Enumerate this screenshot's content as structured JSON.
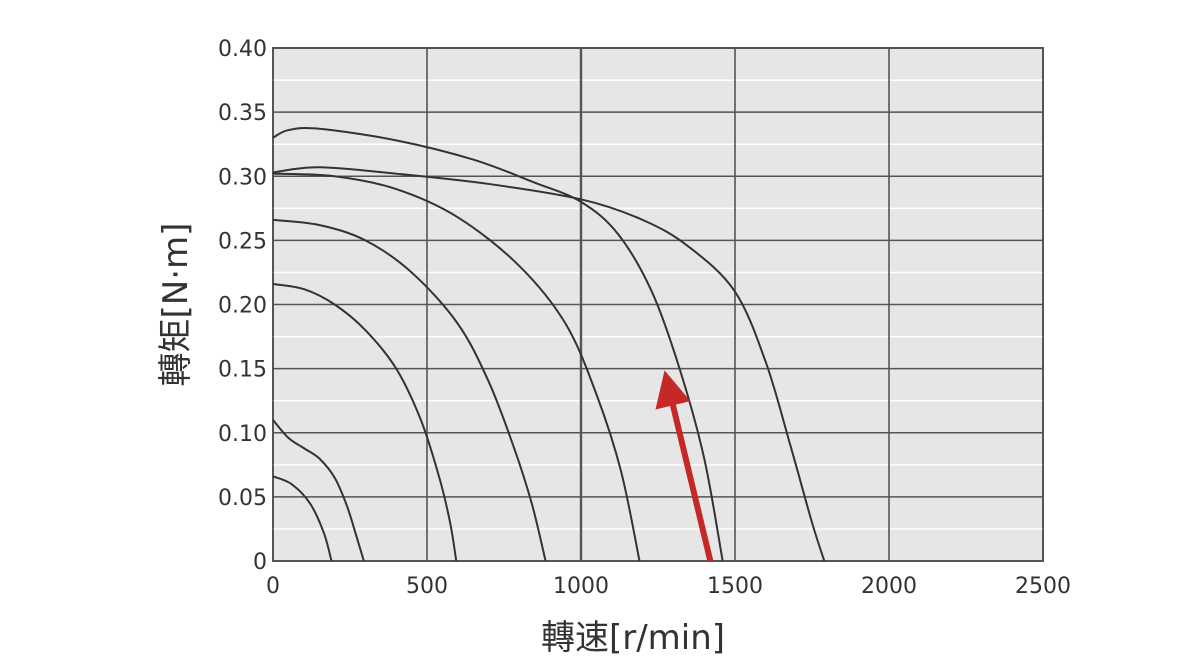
{
  "chart_data": {
    "type": "line",
    "xlabel": "轉速[r/min]",
    "ylabel": "轉矩[N·m]",
    "xlim": [
      0,
      2500
    ],
    "ylim": [
      0,
      0.4
    ],
    "x_ticks": [
      0,
      500,
      1000,
      1500,
      2000,
      2500
    ],
    "x_tick_labels": [
      "0",
      "500",
      "1000",
      "1500",
      "2000",
      "2500"
    ],
    "y_ticks": [
      0,
      0.05,
      0.1,
      0.15,
      0.2,
      0.25,
      0.3,
      0.35,
      0.4
    ],
    "y_tick_labels": [
      "0",
      "0.05",
      "0.10",
      "0.15",
      "0.20",
      "0.25",
      "0.30",
      "0.35",
      "0.40"
    ],
    "grid": true,
    "colors": {
      "plot_background": "#e6e6e6",
      "grid": "#555555",
      "grid_minor": "#ffffff",
      "curve": "#333333",
      "arrow": "#c62828"
    },
    "series": [
      {
        "points": [
          [
            0,
            0.066
          ],
          [
            60,
            0.06
          ],
          [
            120,
            0.045
          ],
          [
            165,
            0.022
          ],
          [
            190,
            0
          ]
        ]
      },
      {
        "points": [
          [
            0,
            0.11
          ],
          [
            50,
            0.096
          ],
          [
            100,
            0.088
          ],
          [
            150,
            0.08
          ],
          [
            200,
            0.065
          ],
          [
            240,
            0.043
          ],
          [
            270,
            0.02
          ],
          [
            295,
            0
          ]
        ]
      },
      {
        "points": [
          [
            0,
            0.216
          ],
          [
            100,
            0.212
          ],
          [
            200,
            0.2
          ],
          [
            300,
            0.18
          ],
          [
            400,
            0.15
          ],
          [
            480,
            0.11
          ],
          [
            540,
            0.065
          ],
          [
            575,
            0.03
          ],
          [
            595,
            0
          ]
        ]
      },
      {
        "points": [
          [
            0,
            0.266
          ],
          [
            150,
            0.262
          ],
          [
            300,
            0.25
          ],
          [
            450,
            0.225
          ],
          [
            600,
            0.185
          ],
          [
            700,
            0.14
          ],
          [
            780,
            0.09
          ],
          [
            840,
            0.045
          ],
          [
            885,
            0
          ]
        ]
      },
      {
        "points": [
          [
            0,
            0.302
          ],
          [
            200,
            0.3
          ],
          [
            400,
            0.29
          ],
          [
            600,
            0.268
          ],
          [
            800,
            0.23
          ],
          [
            950,
            0.185
          ],
          [
            1050,
            0.13
          ],
          [
            1130,
            0.07
          ],
          [
            1190,
            0
          ]
        ]
      },
      {
        "points": [
          [
            0,
            0.33
          ],
          [
            50,
            0.336
          ],
          [
            150,
            0.337
          ],
          [
            400,
            0.328
          ],
          [
            650,
            0.313
          ],
          [
            850,
            0.295
          ],
          [
            1000,
            0.28
          ],
          [
            1120,
            0.255
          ],
          [
            1230,
            0.21
          ],
          [
            1320,
            0.15
          ],
          [
            1400,
            0.08
          ],
          [
            1460,
            0
          ]
        ]
      },
      {
        "points": [
          [
            0,
            0.303
          ],
          [
            150,
            0.307
          ],
          [
            400,
            0.302
          ],
          [
            700,
            0.294
          ],
          [
            1000,
            0.282
          ],
          [
            1200,
            0.266
          ],
          [
            1350,
            0.245
          ],
          [
            1500,
            0.21
          ],
          [
            1600,
            0.155
          ],
          [
            1680,
            0.09
          ],
          [
            1750,
            0.03
          ],
          [
            1790,
            0
          ]
        ]
      }
    ],
    "annotations": [
      {
        "type": "arrow",
        "from": [
          1420,
          0
        ],
        "to": [
          1285,
          0.135
        ]
      }
    ]
  }
}
